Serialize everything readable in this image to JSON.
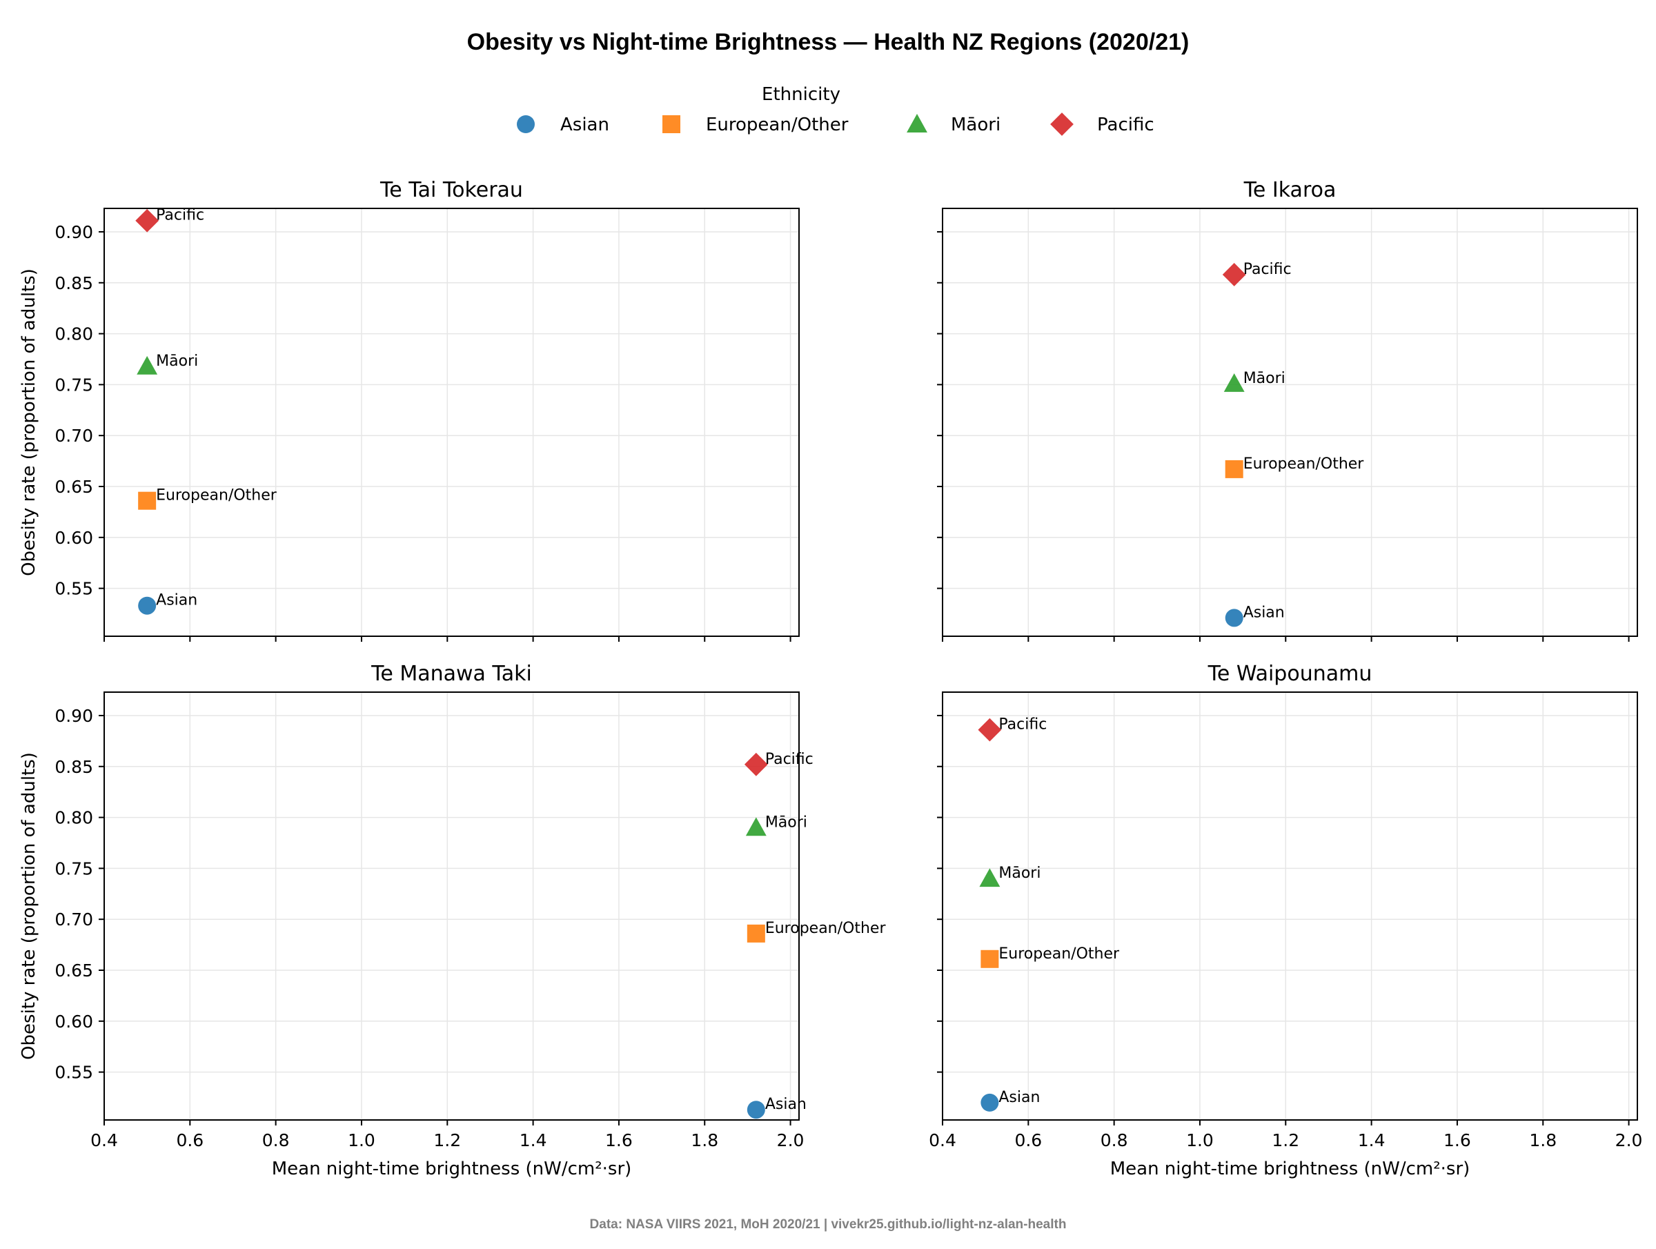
{
  "title": "Obesity vs Night-time Brightness — Health NZ Regions (2020/21)",
  "footer": "Data: NASA VIIRS 2021, MoH 2020/21 | vivekr25.github.io/light-nz-alan-health",
  "legend": {
    "title": "Ethnicity",
    "entries": [
      "Asian",
      "European/Other",
      "Māori",
      "Pacific"
    ]
  },
  "colors": {
    "Asian": "#1f77b4",
    "European/Other": "#ff7f0e",
    "Māori": "#2ca02c",
    "Pacific": "#d62728"
  },
  "markers": {
    "Asian": "circle",
    "European/Other": "square",
    "Māori": "triangle",
    "Pacific": "diamond"
  },
  "chart_data": [
    {
      "type": "scatter",
      "title": "Te Tai Tokerau",
      "xlabel": "",
      "ylabel": "Obesity rate (proportion of adults)",
      "xlim": [
        0.4,
        2.02
      ],
      "ylim": [
        0.503,
        0.923
      ],
      "xticks": [
        0.4,
        0.6,
        0.8,
        1.0,
        1.2,
        1.4,
        1.6,
        1.8,
        2.0
      ],
      "yticks": [
        0.55,
        0.6,
        0.65,
        0.7,
        0.75,
        0.8,
        0.85,
        0.9
      ],
      "show_x_tick_labels": false,
      "show_y_tick_labels": true,
      "grid": true,
      "points": [
        {
          "series": "Asian",
          "x": 0.5,
          "y": 0.533
        },
        {
          "series": "European/Other",
          "x": 0.5,
          "y": 0.636
        },
        {
          "series": "Māori",
          "x": 0.5,
          "y": 0.768
        },
        {
          "series": "Pacific",
          "x": 0.5,
          "y": 0.911
        }
      ]
    },
    {
      "type": "scatter",
      "title": "Te Ikaroa",
      "xlabel": "",
      "ylabel": "",
      "xlim": [
        0.4,
        2.02
      ],
      "ylim": [
        0.503,
        0.923
      ],
      "xticks": [
        0.4,
        0.6,
        0.8,
        1.0,
        1.2,
        1.4,
        1.6,
        1.8,
        2.0
      ],
      "yticks": [
        0.55,
        0.6,
        0.65,
        0.7,
        0.75,
        0.8,
        0.85,
        0.9
      ],
      "show_x_tick_labels": false,
      "show_y_tick_labels": false,
      "grid": true,
      "points": [
        {
          "series": "Asian",
          "x": 1.08,
          "y": 0.521
        },
        {
          "series": "European/Other",
          "x": 1.08,
          "y": 0.667
        },
        {
          "series": "Māori",
          "x": 1.08,
          "y": 0.751
        },
        {
          "series": "Pacific",
          "x": 1.08,
          "y": 0.858
        }
      ]
    },
    {
      "type": "scatter",
      "title": "Te Manawa Taki",
      "xlabel": "Mean night-time brightness (nW/cm²·sr)",
      "ylabel": "Obesity rate (proportion of adults)",
      "xlim": [
        0.4,
        2.02
      ],
      "ylim": [
        0.503,
        0.923
      ],
      "xticks": [
        0.4,
        0.6,
        0.8,
        1.0,
        1.2,
        1.4,
        1.6,
        1.8,
        2.0
      ],
      "yticks": [
        0.55,
        0.6,
        0.65,
        0.7,
        0.75,
        0.8,
        0.85,
        0.9
      ],
      "show_x_tick_labels": true,
      "show_y_tick_labels": true,
      "grid": true,
      "points": [
        {
          "series": "Asian",
          "x": 1.92,
          "y": 0.513
        },
        {
          "series": "European/Other",
          "x": 1.92,
          "y": 0.686
        },
        {
          "series": "Māori",
          "x": 1.92,
          "y": 0.79
        },
        {
          "series": "Pacific",
          "x": 1.92,
          "y": 0.852
        }
      ]
    },
    {
      "type": "scatter",
      "title": "Te Waipounamu",
      "xlabel": "Mean night-time brightness (nW/cm²·sr)",
      "ylabel": "",
      "xlim": [
        0.4,
        2.02
      ],
      "ylim": [
        0.503,
        0.923
      ],
      "xticks": [
        0.4,
        0.6,
        0.8,
        1.0,
        1.2,
        1.4,
        1.6,
        1.8,
        2.0
      ],
      "yticks": [
        0.55,
        0.6,
        0.65,
        0.7,
        0.75,
        0.8,
        0.85,
        0.9
      ],
      "show_x_tick_labels": true,
      "show_y_tick_labels": false,
      "grid": true,
      "points": [
        {
          "series": "Asian",
          "x": 0.51,
          "y": 0.52
        },
        {
          "series": "European/Other",
          "x": 0.51,
          "y": 0.661
        },
        {
          "series": "Māori",
          "x": 0.51,
          "y": 0.74
        },
        {
          "series": "Pacific",
          "x": 0.51,
          "y": 0.886
        }
      ]
    }
  ]
}
